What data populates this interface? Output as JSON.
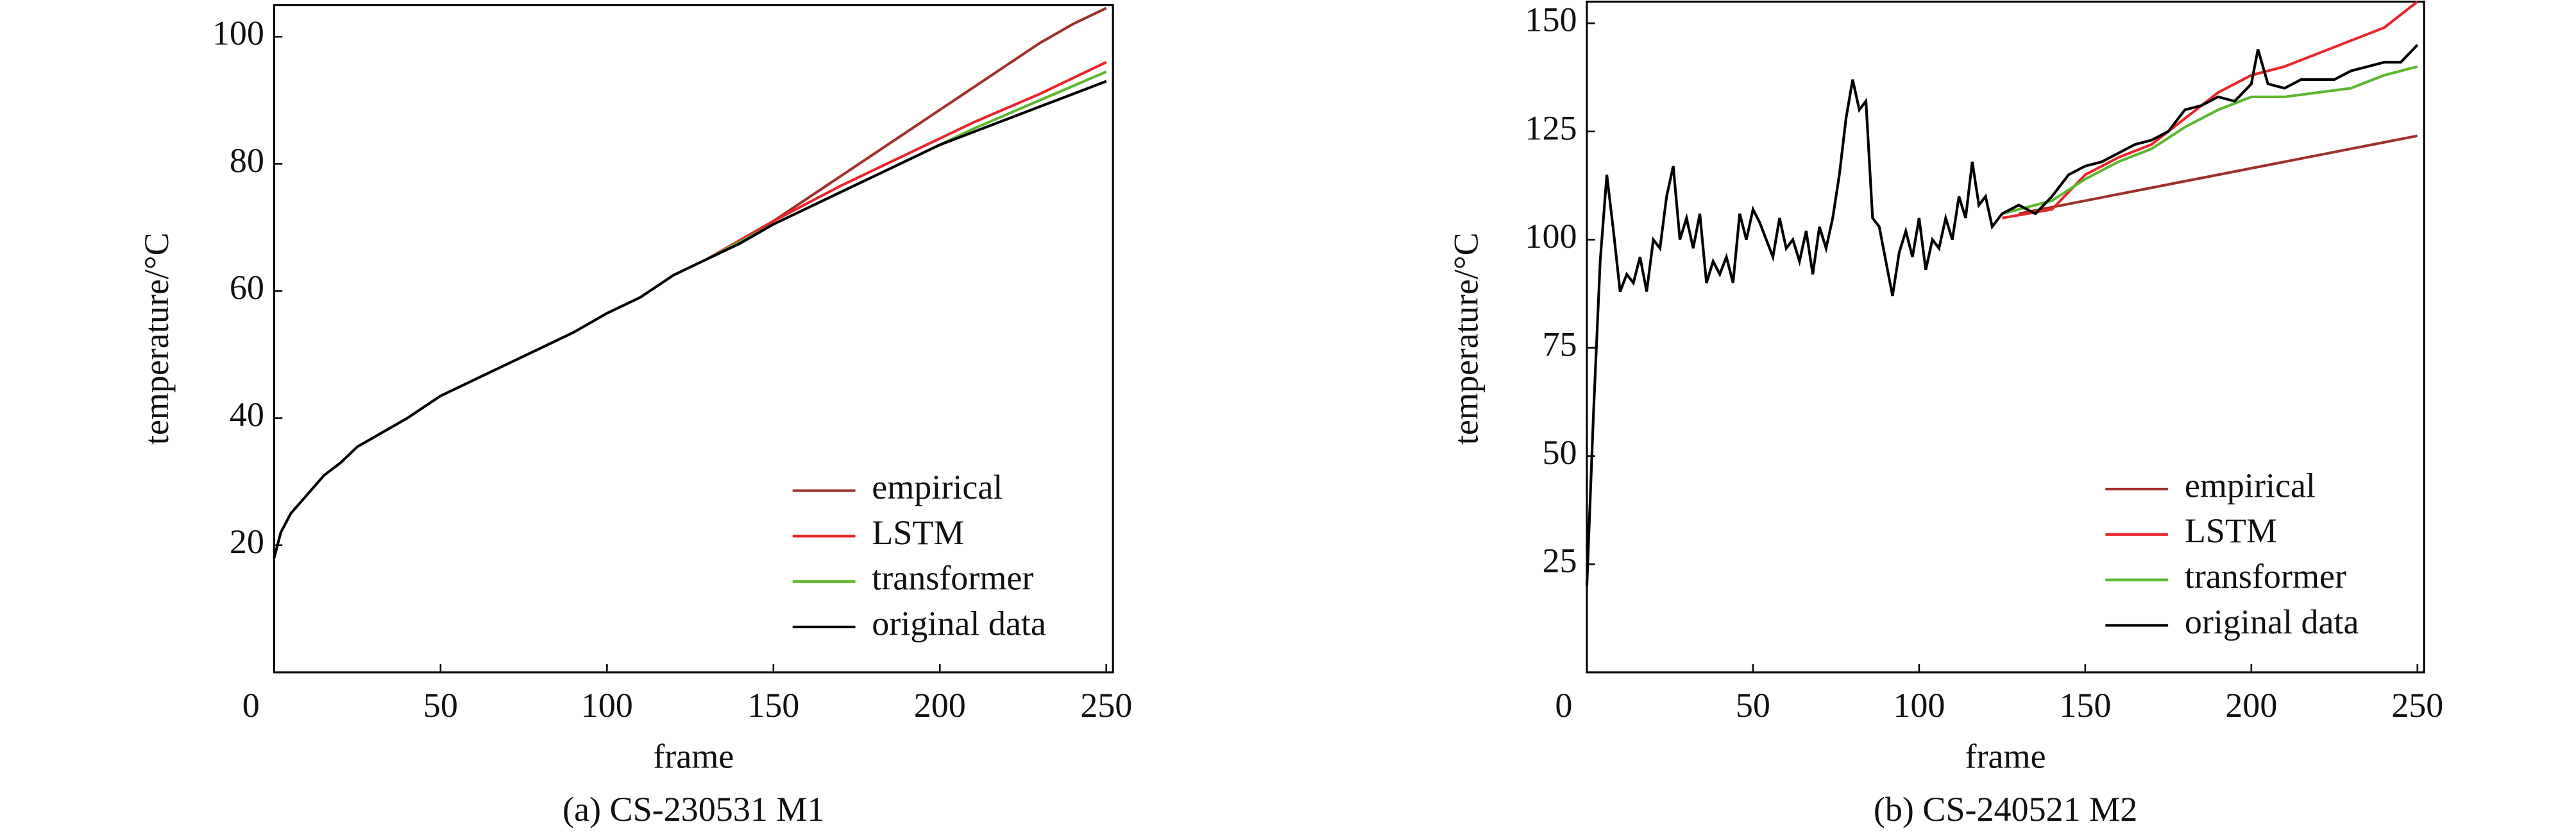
{
  "chart_data": [
    {
      "type": "line",
      "caption": "(a) CS-230531 M1",
      "x_label": "frame",
      "y_label": "temperature/°C",
      "xlim": [
        0,
        252
      ],
      "ylim": [
        0,
        105
      ],
      "xticks": [
        0,
        50,
        100,
        150,
        200,
        250
      ],
      "yticks": [
        20,
        40,
        60,
        80,
        100
      ],
      "legend": "lower right",
      "series": [
        {
          "name": "empirical",
          "color": "#a0302a",
          "x": [
            130,
            140,
            150,
            160,
            170,
            180,
            190,
            200,
            210,
            220,
            230,
            240,
            250
          ],
          "values": [
            65,
            68,
            71,
            74.5,
            78,
            81.5,
            85,
            88.5,
            92,
            95.5,
            99,
            102,
            104.5
          ]
        },
        {
          "name": "LSTM",
          "color": "#e8262a",
          "x": [
            130,
            150,
            170,
            190,
            210,
            230,
            250
          ],
          "values": [
            65,
            71,
            76.5,
            81.5,
            86.5,
            91,
            96
          ]
        },
        {
          "name": "transformer",
          "color": "#5cb82e",
          "x": [
            130,
            150,
            170,
            190,
            210,
            230,
            250
          ],
          "values": [
            65,
            70.5,
            75.5,
            80.5,
            85.5,
            90,
            94.5
          ]
        },
        {
          "name": "original data",
          "color": "#000000",
          "x": [
            0,
            2,
            5,
            10,
            15,
            20,
            25,
            30,
            40,
            50,
            60,
            70,
            80,
            90,
            100,
            110,
            120,
            130,
            140,
            150,
            160,
            170,
            180,
            190,
            200,
            210,
            220,
            230,
            240,
            250
          ],
          "values": [
            18,
            22,
            25,
            28,
            31,
            33,
            35.5,
            37,
            40,
            43.5,
            46,
            48.5,
            51,
            53.5,
            56.5,
            59,
            62.5,
            65,
            67.5,
            70.5,
            73,
            75.5,
            78,
            80.5,
            83,
            85,
            87,
            89,
            91,
            93
          ]
        }
      ]
    },
    {
      "type": "line",
      "caption": "(b) CS-240521 M2",
      "x_label": "frame",
      "y_label": "temperature/°C",
      "xlim": [
        0,
        252
      ],
      "ylim": [
        0,
        155
      ],
      "xticks": [
        0,
        50,
        100,
        150,
        200,
        250
      ],
      "yticks": [
        25,
        50,
        75,
        100,
        125,
        150
      ],
      "legend": "lower right",
      "series": [
        {
          "name": "empirical",
          "color": "#a0302a",
          "x": [
            130,
            190,
            250
          ],
          "values": [
            106,
            115,
            124
          ]
        },
        {
          "name": "LSTM",
          "color": "#e8262a",
          "x": [
            125,
            140,
            150,
            160,
            170,
            180,
            190,
            200,
            210,
            220,
            230,
            240,
            250
          ],
          "values": [
            105,
            107,
            115,
            119,
            122,
            128,
            134,
            138,
            140,
            143,
            146,
            149,
            155
          ]
        },
        {
          "name": "transformer",
          "color": "#5cb82e",
          "x": [
            125,
            140,
            150,
            160,
            170,
            180,
            190,
            200,
            210,
            220,
            230,
            240,
            250
          ],
          "values": [
            106,
            109,
            114,
            118,
            121,
            126,
            130,
            133,
            133,
            134,
            135,
            138,
            140
          ]
        },
        {
          "name": "original data",
          "color": "#000000",
          "x": [
            0,
            2,
            4,
            6,
            8,
            10,
            12,
            14,
            16,
            18,
            20,
            22,
            24,
            26,
            28,
            30,
            32,
            34,
            36,
            38,
            40,
            42,
            44,
            46,
            48,
            50,
            52,
            54,
            56,
            58,
            60,
            62,
            64,
            66,
            68,
            70,
            72,
            74,
            76,
            78,
            80,
            82,
            84,
            86,
            88,
            90,
            92,
            94,
            96,
            98,
            100,
            102,
            104,
            106,
            108,
            110,
            112,
            114,
            116,
            118,
            120,
            122,
            125,
            130,
            135,
            140,
            145,
            150,
            155,
            160,
            165,
            170,
            175,
            180,
            185,
            190,
            195,
            200,
            202,
            205,
            210,
            215,
            220,
            225,
            230,
            235,
            240,
            245,
            250
          ],
          "values": [
            20,
            60,
            95,
            115,
            102,
            88,
            92,
            90,
            96,
            88,
            100,
            98,
            110,
            117,
            100,
            105,
            98,
            106,
            90,
            95,
            92,
            96,
            90,
            106,
            100,
            107,
            104,
            100,
            96,
            105,
            98,
            100,
            95,
            102,
            92,
            103,
            98,
            105,
            115,
            128,
            137,
            130,
            132,
            105,
            103,
            95,
            87,
            97,
            102,
            96,
            105,
            93,
            100,
            98,
            105,
            100,
            110,
            105,
            118,
            108,
            110,
            103,
            106,
            108,
            106,
            110,
            115,
            117,
            118,
            120,
            122,
            123,
            125,
            130,
            131,
            133,
            132,
            136,
            144,
            136,
            135,
            137,
            137,
            137,
            139,
            140,
            141,
            141,
            145
          ]
        }
      ]
    }
  ]
}
